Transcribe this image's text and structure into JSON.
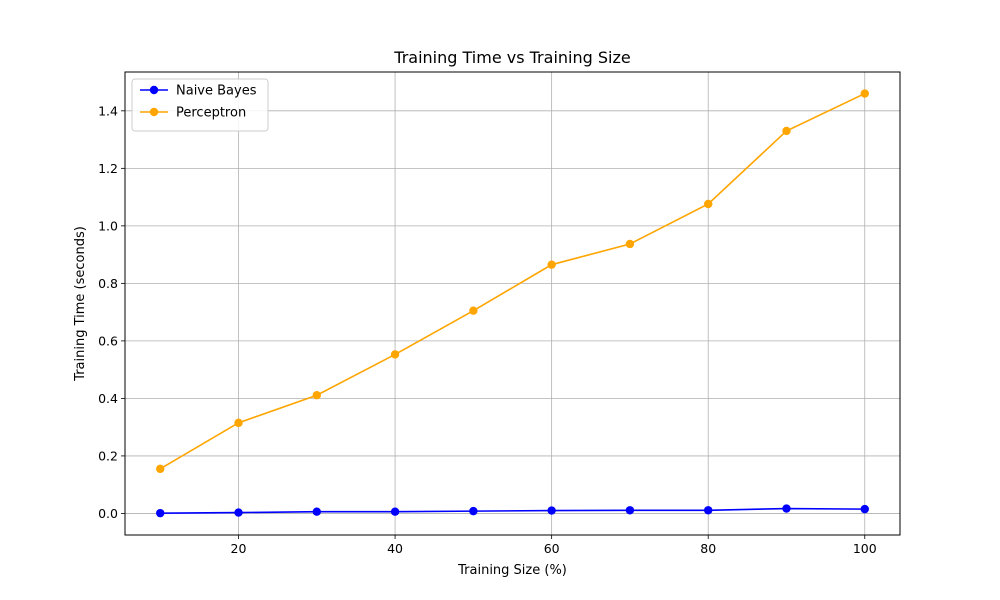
{
  "chart_data": {
    "type": "line",
    "title": "Training Time vs Training Size",
    "xlabel": "Training Size (%)",
    "ylabel": "Training Time (seconds)",
    "x": [
      10,
      20,
      30,
      40,
      50,
      60,
      70,
      80,
      90,
      100
    ],
    "xlim": [
      5.5,
      104.5
    ],
    "ylim": [
      -0.075,
      1.535
    ],
    "xticks": [
      20,
      40,
      60,
      80,
      100
    ],
    "xtick_labels": [
      "20",
      "40",
      "60",
      "80",
      "100"
    ],
    "yticks": [
      0.0,
      0.2,
      0.4,
      0.6,
      0.8,
      1.0,
      1.2,
      1.4
    ],
    "ytick_labels": [
      "0.0",
      "0.2",
      "0.4",
      "0.6",
      "0.8",
      "1.0",
      "1.2",
      "1.4"
    ],
    "grid": true,
    "legend_position": "upper-left",
    "series": [
      {
        "name": "Naive Bayes",
        "color": "#0000ff",
        "marker": "circle",
        "values": [
          0.001,
          0.003,
          0.006,
          0.006,
          0.008,
          0.01,
          0.011,
          0.011,
          0.017,
          0.015
        ]
      },
      {
        "name": "Perceptron",
        "color": "#ffa500",
        "marker": "circle",
        "values": [
          0.155,
          0.315,
          0.411,
          0.553,
          0.705,
          0.865,
          0.937,
          1.076,
          1.33,
          1.46
        ]
      }
    ]
  }
}
